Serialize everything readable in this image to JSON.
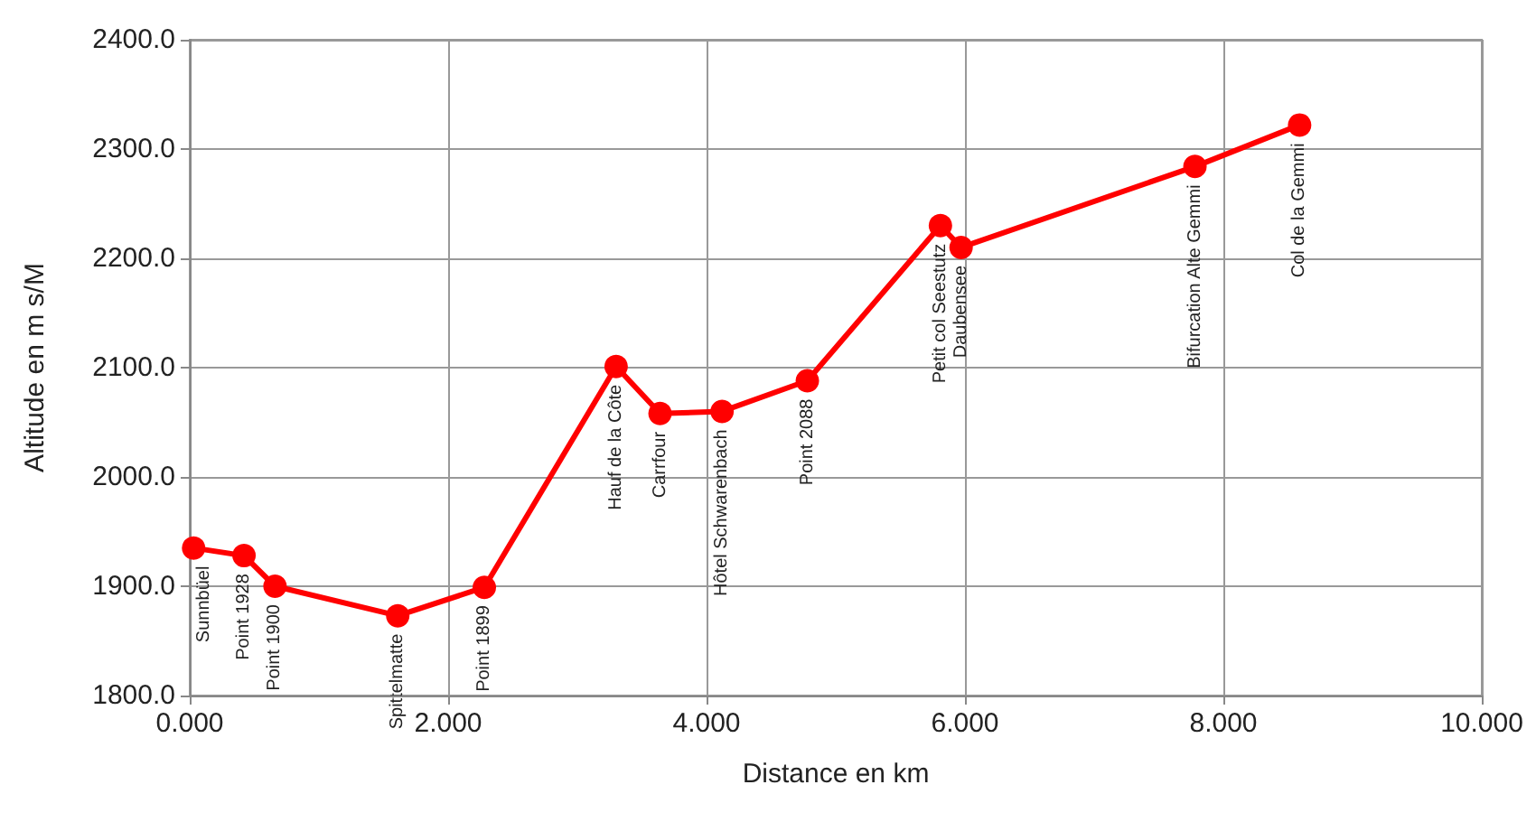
{
  "chart_data": {
    "type": "line",
    "xlabel": "Distance en km",
    "ylabel": "Altitude en m s/M",
    "x": [
      0.03,
      0.42,
      0.66,
      1.61,
      2.28,
      3.3,
      3.64,
      4.12,
      4.78,
      5.81,
      5.97,
      7.78,
      8.59
    ],
    "series": [
      {
        "color": "#ff0000",
        "values": [
          1935,
          1928,
          1900,
          1873,
          1899,
          2101,
          2058,
          2060,
          2088,
          2230,
          2210,
          2284,
          2322
        ]
      }
    ],
    "xlim": [
      0,
      10
    ],
    "xticks": [
      {
        "value": 0,
        "label": "0.000"
      },
      {
        "value": 2,
        "label": "2.000"
      },
      {
        "value": 4,
        "label": "4.000"
      },
      {
        "value": 6,
        "label": "6.000"
      },
      {
        "value": 8,
        "label": "8.000"
      },
      {
        "value": 10,
        "label": "10.000"
      }
    ],
    "ylim": [
      1800,
      2400
    ],
    "yticks": [
      {
        "value": 1800,
        "label": "1800.0"
      },
      {
        "value": 1900,
        "label": "1900.0"
      },
      {
        "value": 2000,
        "label": "2000.0"
      },
      {
        "value": 2100,
        "label": "2100.0"
      },
      {
        "value": 2200,
        "label": "2200.0"
      },
      {
        "value": 2300,
        "label": "2300.0"
      },
      {
        "value": 2400,
        "label": "2400.0"
      }
    ],
    "grid": true,
    "marker": "circle",
    "line_style": "solid",
    "annotations": [
      {
        "text": "Sunnbüel",
        "x": 0.03,
        "y": 1935
      },
      {
        "text": "Point 1928",
        "x": 0.42,
        "y": 1928
      },
      {
        "text": "Point 1900",
        "x": 0.66,
        "y": 1900
      },
      {
        "text": "Spittelmatte",
        "x": 1.61,
        "y": 1873
      },
      {
        "text": "Point 1899",
        "x": 2.28,
        "y": 1899
      },
      {
        "text": "Hauf de la Côte",
        "x": 3.3,
        "y": 2101
      },
      {
        "text": "Carrfour",
        "x": 3.64,
        "y": 2058
      },
      {
        "text": "Hôtel Schwarenbach",
        "x": 4.12,
        "y": 2060
      },
      {
        "text": "Point 2088",
        "x": 4.78,
        "y": 2088
      },
      {
        "text": "Petit col Seestutz",
        "x": 5.81,
        "y": 2230
      },
      {
        "text": "Daubensee",
        "x": 5.97,
        "y": 2210
      },
      {
        "text": "Bifurcation Alte Gemmi",
        "x": 7.78,
        "y": 2284
      },
      {
        "text": "Col de la Gemmi",
        "x": 8.59,
        "y": 2322
      }
    ]
  }
}
